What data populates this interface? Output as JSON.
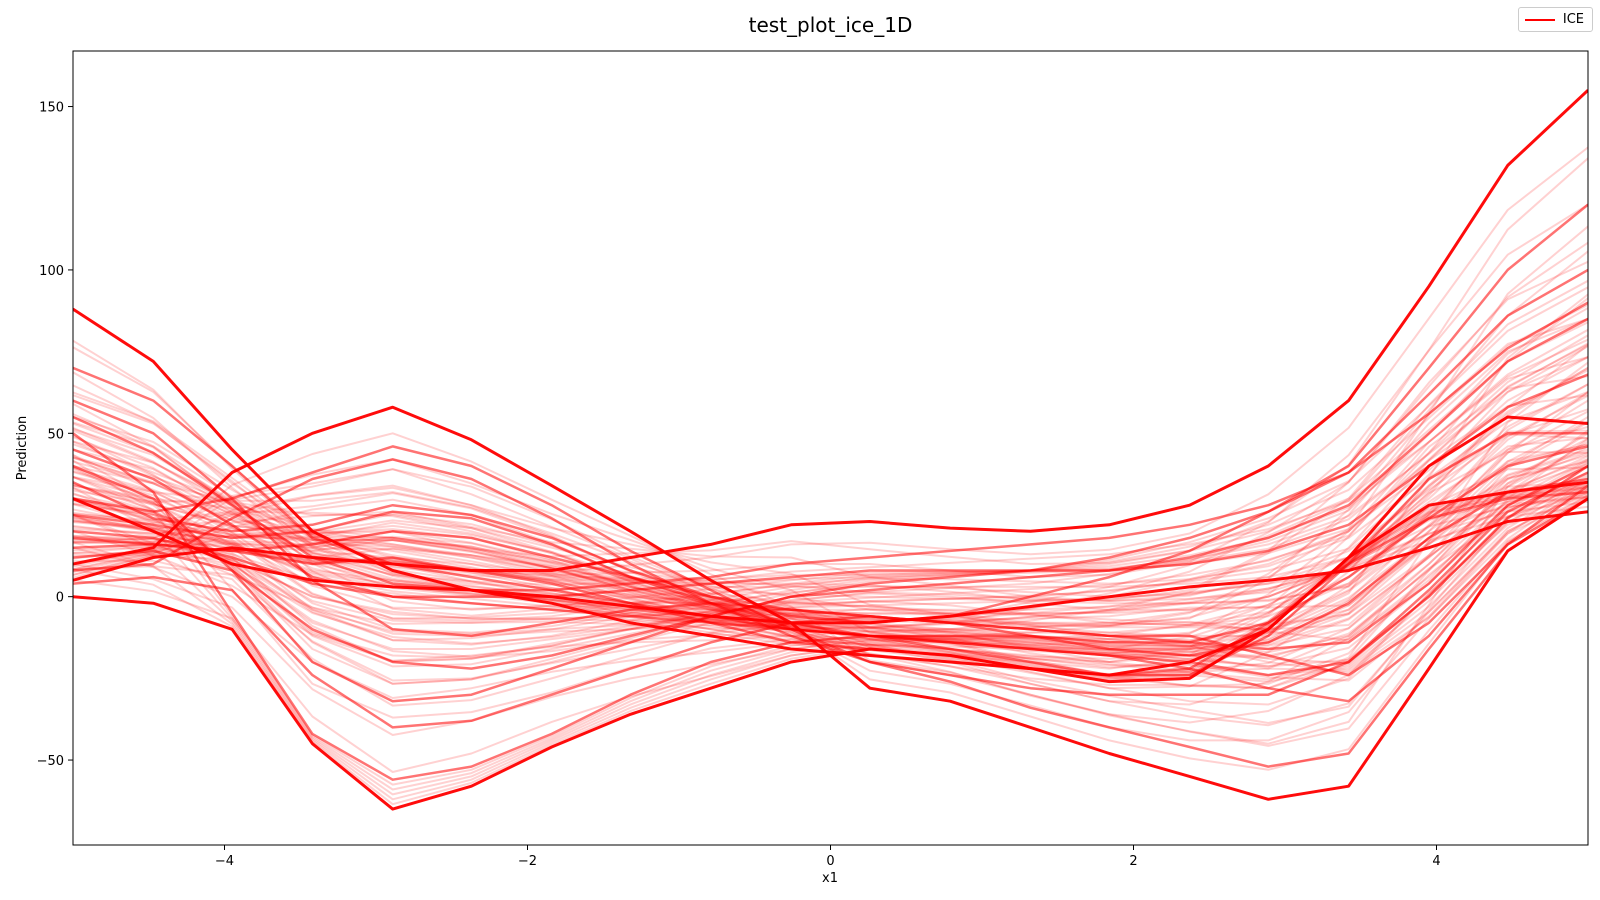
{
  "chart_data": {
    "type": "line",
    "title": "test_plot_ice_1D",
    "xlabel": "x1",
    "ylabel": "Prediction",
    "xlim": [
      -5,
      5
    ],
    "ylim": [
      -76,
      167
    ],
    "xticks": [
      -4,
      -2,
      0,
      2,
      4
    ],
    "yticks": [
      -50,
      0,
      50,
      100,
      150
    ],
    "xtick_labels": [
      "−4",
      "−2",
      "0",
      "2",
      "4"
    ],
    "ytick_labels": [
      "−50",
      "0",
      "50",
      "100",
      "150"
    ],
    "legend": {
      "position": "top-right",
      "entries": [
        "ICE"
      ]
    },
    "grid": false,
    "line_color": "#ff0000",
    "x": [
      -5.0,
      -4.47,
      -3.95,
      -3.42,
      -2.89,
      -2.37,
      -1.84,
      -1.32,
      -0.79,
      -0.26,
      0.26,
      0.79,
      1.32,
      1.84,
      2.37,
      2.89,
      3.42,
      3.95,
      4.47,
      5.0
    ],
    "series": [
      {
        "values": [
          88,
          72,
          45,
          20,
          8,
          2,
          -2,
          -8,
          -12,
          -16,
          -18,
          -20,
          -22,
          -24,
          -20,
          -10,
          12,
          40,
          55,
          53
        ]
      },
      {
        "values": [
          30,
          20,
          10,
          5,
          3,
          2,
          0,
          -3,
          -6,
          -8,
          -8,
          -6,
          -3,
          0,
          3,
          5,
          8,
          15,
          23,
          26
        ]
      },
      {
        "values": [
          0,
          -2,
          -10,
          -45,
          -65,
          -58,
          -46,
          -36,
          -28,
          -20,
          -16,
          -18,
          -22,
          -26,
          -25,
          -10,
          12,
          28,
          32,
          35
        ]
      },
      {
        "values": [
          50,
          32,
          -5,
          -42,
          -56,
          -52,
          -42,
          -30,
          -20,
          -14,
          -12,
          -16,
          -20,
          -24,
          -22,
          -8,
          10,
          24,
          30,
          32
        ]
      },
      {
        "values": [
          10,
          15,
          38,
          50,
          58,
          48,
          34,
          20,
          5,
          -8,
          -28,
          -32,
          -40,
          -48,
          -55,
          -62,
          -58,
          -22,
          14,
          30
        ]
      },
      {
        "values": [
          5,
          12,
          15,
          12,
          10,
          8,
          8,
          12,
          16,
          22,
          23,
          21,
          20,
          22,
          28,
          40,
          60,
          95,
          132,
          155
        ]
      },
      {
        "values": [
          15,
          16,
          14,
          10,
          12,
          8,
          4,
          -2,
          -8,
          -14,
          -16,
          -18,
          -22,
          -24,
          -24,
          -12,
          10,
          36,
          50,
          50
        ]
      },
      {
        "values": [
          35,
          24,
          20,
          22,
          28,
          25,
          18,
          8,
          0,
          -6,
          -8,
          -6,
          0,
          6,
          14,
          26,
          40,
          70,
          100,
          120
        ]
      },
      {
        "values": [
          60,
          50,
          30,
          5,
          -10,
          -12,
          -8,
          -4,
          -2,
          -4,
          -6,
          -8,
          -10,
          -12,
          -12,
          -18,
          -24,
          -8,
          16,
          34
        ]
      },
      {
        "values": [
          8,
          10,
          24,
          36,
          42,
          36,
          24,
          10,
          -2,
          -12,
          -20,
          -24,
          -28,
          -30,
          -30,
          -30,
          -20,
          2,
          26,
          38
        ]
      },
      {
        "values": [
          40,
          30,
          8,
          -20,
          -32,
          -30,
          -22,
          -14,
          -6,
          0,
          2,
          4,
          6,
          8,
          12,
          18,
          28,
          50,
          72,
          85
        ]
      },
      {
        "values": [
          20,
          18,
          12,
          4,
          0,
          -2,
          -4,
          -6,
          -8,
          -10,
          -12,
          -14,
          -16,
          -18,
          -20,
          -24,
          -20,
          0,
          24,
          40
        ]
      },
      {
        "values": [
          70,
          60,
          40,
          18,
          10,
          6,
          2,
          -2,
          -6,
          -10,
          -12,
          -12,
          -12,
          -14,
          -14,
          -8,
          6,
          24,
          40,
          46
        ]
      },
      {
        "values": [
          25,
          22,
          18,
          20,
          26,
          24,
          16,
          6,
          -2,
          -8,
          -12,
          -14,
          -16,
          -18,
          -22,
          -28,
          -32,
          -12,
          16,
          30
        ]
      },
      {
        "values": [
          12,
          14,
          8,
          -10,
          -20,
          -22,
          -18,
          -12,
          -6,
          0,
          4,
          6,
          8,
          12,
          18,
          26,
          38,
          62,
          86,
          100
        ]
      },
      {
        "values": [
          45,
          36,
          22,
          6,
          0,
          0,
          0,
          2,
          4,
          6,
          8,
          8,
          8,
          8,
          10,
          14,
          22,
          40,
          58,
          68
        ]
      },
      {
        "values": [
          4,
          6,
          2,
          -24,
          -40,
          -38,
          -30,
          -22,
          -14,
          -8,
          -6,
          -8,
          -12,
          -16,
          -18,
          -14,
          -2,
          18,
          32,
          36
        ]
      },
      {
        "values": [
          30,
          26,
          30,
          38,
          46,
          40,
          28,
          14,
          2,
          -10,
          -20,
          -26,
          -34,
          -40,
          -46,
          -52,
          -48,
          -16,
          14,
          30
        ]
      },
      {
        "values": [
          55,
          44,
          28,
          12,
          4,
          2,
          2,
          4,
          6,
          10,
          12,
          14,
          16,
          18,
          22,
          28,
          38,
          56,
          76,
          90
        ]
      },
      {
        "values": [
          18,
          16,
          14,
          16,
          20,
          18,
          12,
          6,
          0,
          -4,
          -6,
          -8,
          -10,
          -12,
          -14,
          -16,
          -14,
          4,
          28,
          40
        ]
      }
    ]
  }
}
